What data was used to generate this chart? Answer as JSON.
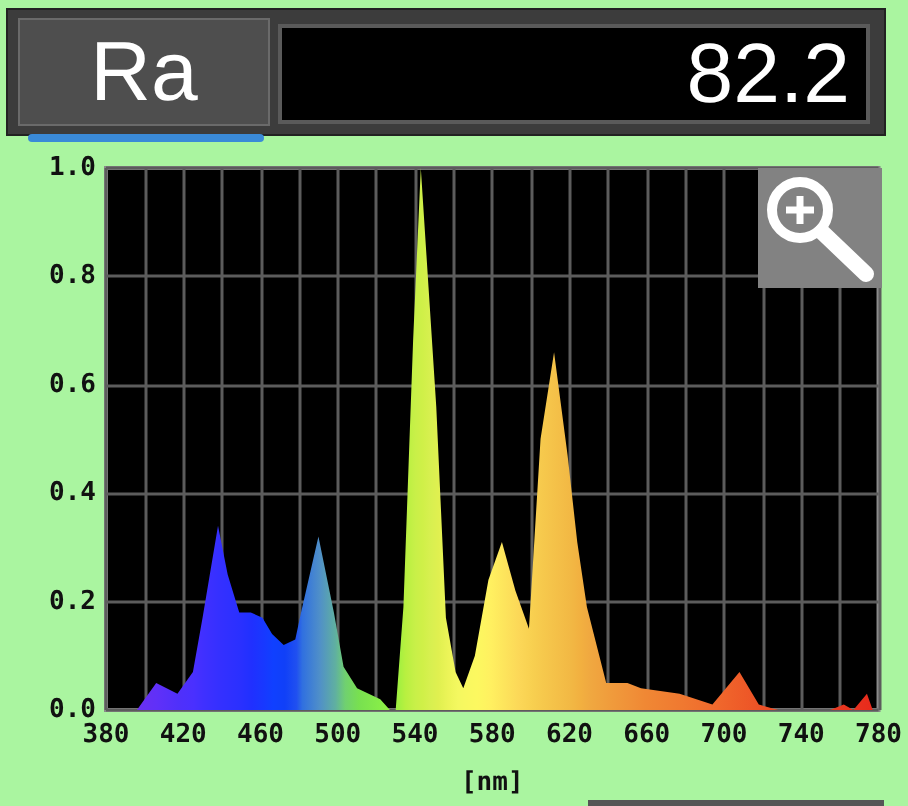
{
  "chart_data": {
    "type": "area",
    "annotations": [
      "Ra",
      "82.2"
    ],
    "xlabel": "[nm]",
    "x": [
      396,
      406,
      417,
      425,
      430,
      438,
      443,
      449,
      455,
      461,
      466,
      472,
      478,
      481,
      490,
      498,
      503,
      510,
      522,
      527,
      530,
      534,
      539,
      543,
      547,
      551,
      556,
      561,
      565,
      571,
      578,
      585,
      592,
      599,
      605,
      612,
      619,
      624,
      629,
      639,
      650,
      657,
      677,
      694,
      708,
      718,
      728,
      755,
      762,
      767,
      774,
      777
    ],
    "values": [
      0,
      0.05,
      0.03,
      0.07,
      0.17,
      0.34,
      0.25,
      0.18,
      0.18,
      0.17,
      0.14,
      0.12,
      0.13,
      0.18,
      0.32,
      0.18,
      0.08,
      0.04,
      0.02,
      0,
      0,
      0.19,
      0.68,
      1.0,
      0.78,
      0.56,
      0.17,
      0.07,
      0.04,
      0.1,
      0.24,
      0.31,
      0.22,
      0.15,
      0.5,
      0.66,
      0.47,
      0.31,
      0.19,
      0.05,
      0.05,
      0.04,
      0.03,
      0.01,
      0.07,
      0.01,
      0,
      0,
      0.01,
      0,
      0.03,
      0
    ],
    "colors": [
      "#6a30f0",
      "#6030f8",
      "#5030fa",
      "#4a30ff",
      "#4030ff",
      "#3530ff",
      "#3030ff",
      "#2a30ff",
      "#2030ff",
      "#1838ff",
      "#1040ff",
      "#1040f8",
      "#2050f0",
      "#3070e0",
      "#5090c8",
      "#60b0a0",
      "#70d070",
      "#78e050",
      "#88ee48",
      "#98f040",
      "#a0f040",
      "#b8f040",
      "#c8f048",
      "#d0f048",
      "#d8f050",
      "#e0f050",
      "#ecf458",
      "#f4f860",
      "#f8f860",
      "#fcf860",
      "#fff060",
      "#fde45c",
      "#fcd858",
      "#f8d050",
      "#f6c84c",
      "#f4c048",
      "#f2b844",
      "#f2b040",
      "#f0a840",
      "#f09c3c",
      "#f09038",
      "#f08834",
      "#f07830",
      "#f0682c",
      "#ee5a28",
      "#ec5026",
      "#ea4824",
      "#e83820",
      "#e8341e",
      "#e8301e",
      "#e82a1c",
      "#e8281c"
    ],
    "xlim": [
      380,
      780
    ],
    "xticks": [
      380,
      {
        "value": 400,
        "label": null
      },
      420,
      {
        "value": 440,
        "label": null
      },
      460,
      {
        "value": 480,
        "label": null
      },
      500,
      {
        "value": 520,
        "label": null
      },
      540,
      {
        "value": 560,
        "label": null
      },
      580,
      {
        "value": 600,
        "label": null
      },
      620,
      {
        "value": 640,
        "label": null
      },
      660,
      {
        "value": 680,
        "label": null
      },
      700,
      {
        "value": 720,
        "label": null
      },
      740,
      {
        "value": 760,
        "label": null
      },
      780
    ],
    "ylim": [
      0,
      1
    ],
    "yticks": [
      {
        "value": 0,
        "label": "0.0"
      },
      0.2,
      0.4,
      0.6,
      0.8,
      {
        "value": 1,
        "label": "1.0"
      }
    ],
    "grid": true
  }
}
